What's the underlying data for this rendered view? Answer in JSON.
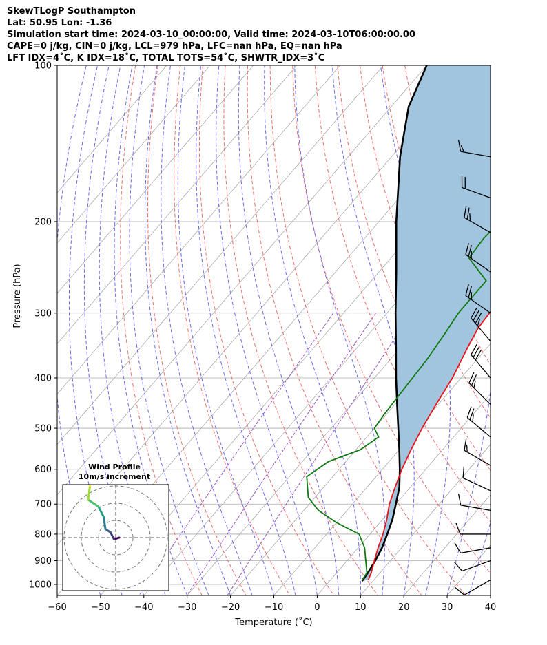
{
  "header": {
    "title": "SkewTLogP Southampton",
    "location": "Lat: 50.95   Lon: -1.36",
    "times": "Simulation start time: 2024-03-10_00:00:00, Valid time: 2024-03-10T06:00:00.00",
    "indices_1": "CAPE=0 j/kg, CIN=0 j/kg, LCL=979 hPa, LFC=nan hPa, EQ=nan hPa",
    "indices_2": "LFT IDX=4˚C, K IDX=18˚C, TOTAL TOTS=54˚C, SHWTR_IDX=3˚C"
  },
  "chart_data": [
    {
      "type": "skew-t",
      "xlabel": "Temperature (˚C)",
      "ylabel": "Pressure (hPa)",
      "x_ticks": [
        -60,
        -50,
        -40,
        -30,
        -20,
        -10,
        0,
        10,
        20,
        30,
        40
      ],
      "xlim": [
        -60,
        40
      ],
      "y_ticks": [
        100,
        200,
        300,
        400,
        500,
        600,
        700,
        800,
        900,
        1000
      ],
      "ylim": [
        1050,
        100
      ],
      "y_scale": "log",
      "grid": true,
      "colors": {
        "temperature": "#e8141a",
        "dewpoint": "#0f7a12",
        "parcel": "#000000",
        "cape_fill": "#a2c5df",
        "dry_adiabat": "#ee6e6e",
        "moist_adiabat": "#6a6aee",
        "mixing_ratio": "#9a55c8",
        "isotherm": "#aaaaaa"
      },
      "series": [
        {
          "name": "",
          "role": "temperature",
          "points": [
            [
              100,
              13.5
            ],
            [
              110,
              12.5
            ],
            [
              120,
              11
            ],
            [
              135,
              8.5
            ],
            [
              150,
              6.3
            ],
            [
              165,
              3.3
            ],
            [
              180,
              0.5
            ],
            [
              190,
              -1.5
            ],
            [
              200,
              -3
            ],
            [
              230,
              -5.7
            ],
            [
              250,
              -10.8
            ],
            [
              270,
              -15.3
            ],
            [
              290,
              -16.5
            ],
            [
              320,
              -16
            ],
            [
              350,
              -14.5
            ],
            [
              400,
              -12
            ],
            [
              450,
              -10.5
            ],
            [
              500,
              -9
            ],
            [
              550,
              -7.3
            ],
            [
              600,
              -5.5
            ],
            [
              650,
              -3.5
            ],
            [
              700,
              -1.5
            ],
            [
              750,
              1
            ],
            [
              800,
              3
            ],
            [
              850,
              4.6
            ],
            [
              900,
              6.3
            ],
            [
              950,
              8
            ],
            [
              980,
              8.7
            ]
          ]
        },
        {
          "name": "",
          "role": "dewpoint",
          "points": [
            [
              100,
              -9
            ],
            [
              150,
              -21
            ],
            [
              200,
              -32
            ],
            [
              215,
              -32.5
            ],
            [
              235,
              -32
            ],
            [
              260,
              -23.5
            ],
            [
              280,
              -23.5
            ],
            [
              300,
              -23.5
            ],
            [
              330,
              -22.5
            ],
            [
              370,
              -21.5
            ],
            [
              420,
              -21
            ],
            [
              470,
              -20.5
            ],
            [
              500,
              -20
            ],
            [
              520,
              -17.3
            ],
            [
              550,
              -19
            ],
            [
              580,
              -24
            ],
            [
              620,
              -26
            ],
            [
              680,
              -21.5
            ],
            [
              720,
              -16.6
            ],
            [
              760,
              -10
            ],
            [
              800,
              -2.5
            ],
            [
              850,
              1.5
            ],
            [
              900,
              4.3
            ],
            [
              950,
              7
            ],
            [
              980,
              7.3
            ]
          ]
        },
        {
          "name": "",
          "role": "parcel",
          "points": [
            [
              100,
              -80
            ],
            [
              120,
              -76
            ],
            [
              150,
              -68
            ],
            [
              200,
              -56
            ],
            [
              250,
              -46
            ],
            [
              300,
              -38
            ],
            [
              350,
              -31
            ],
            [
              400,
              -25
            ],
            [
              450,
              -19.5
            ],
            [
              500,
              -14.5
            ],
            [
              550,
              -10
            ],
            [
              600,
              -6
            ],
            [
              650,
              -2.5
            ],
            [
              700,
              0
            ],
            [
              750,
              2.3
            ],
            [
              800,
              4
            ],
            [
              850,
              5.5
            ],
            [
              900,
              6.5
            ],
            [
              950,
              7.2
            ],
            [
              985,
              7.5
            ]
          ]
        }
      ]
    },
    {
      "type": "hodograph",
      "title": "Wind Profile",
      "subtitle": "10m/s increment",
      "points": [
        [
          2,
          0
        ],
        [
          -1,
          -1
        ],
        [
          -3,
          3
        ],
        [
          -6,
          5
        ],
        [
          -7,
          12
        ],
        [
          -10,
          18
        ],
        [
          -16,
          22
        ],
        [
          -15,
          30
        ],
        [
          -14,
          38
        ],
        [
          -13,
          44
        ]
      ]
    },
    {
      "type": "wind-barbs",
      "barbs": [
        {
          "p": 150,
          "speed_kt": 15,
          "dir": 280
        },
        {
          "p": 180,
          "speed_kt": 20,
          "dir": 290
        },
        {
          "p": 210,
          "speed_kt": 25,
          "dir": 300
        },
        {
          "p": 250,
          "speed_kt": 25,
          "dir": 305
        },
        {
          "p": 300,
          "speed_kt": 25,
          "dir": 305
        },
        {
          "p": 340,
          "speed_kt": 35,
          "dir": 320
        },
        {
          "p": 400,
          "speed_kt": 30,
          "dir": 320
        },
        {
          "p": 450,
          "speed_kt": 25,
          "dir": 315
        },
        {
          "p": 520,
          "speed_kt": 25,
          "dir": 310
        },
        {
          "p": 590,
          "speed_kt": 15,
          "dir": 300
        },
        {
          "p": 660,
          "speed_kt": 10,
          "dir": 295
        },
        {
          "p": 720,
          "speed_kt": 10,
          "dir": 280
        },
        {
          "p": 800,
          "speed_kt": 10,
          "dir": 270
        },
        {
          "p": 850,
          "speed_kt": 10,
          "dir": 260
        },
        {
          "p": 900,
          "speed_kt": 10,
          "dir": 250
        },
        {
          "p": 980,
          "speed_kt": 10,
          "dir": 240
        }
      ]
    }
  ]
}
